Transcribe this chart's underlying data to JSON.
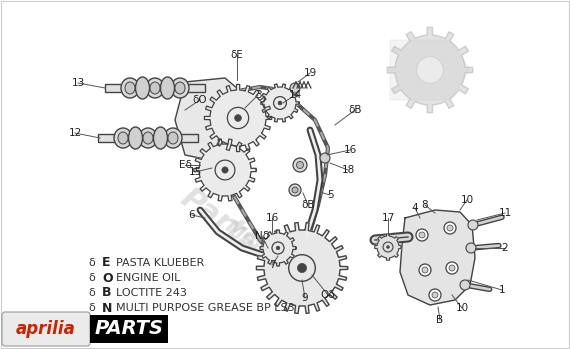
{
  "background_color": "#ffffff",
  "border_color": "#cccccc",
  "legend_items": [
    {
      "symbol": "δ E",
      "letter": "E",
      "text": "PASTA KLUEBER"
    },
    {
      "symbol": "δ O",
      "letter": "O",
      "text": "ENGINE OIL"
    },
    {
      "symbol": "δ B",
      "letter": "B",
      "text": "LOCTITE 243"
    },
    {
      "symbol": "δ N",
      "letter": "N",
      "text": "MULTI PURPOSE GREASE BP LS3"
    }
  ],
  "aprilia_text": "aprilia",
  "parts_text": "PARTS",
  "parts_bg": "#000000",
  "parts_color": "#ffffff",
  "aprilia_color": "#cc2200",
  "diagram_color": "#444444",
  "label_color": "#222222",
  "fig_width": 5.7,
  "fig_height": 3.49,
  "dpi": 100,
  "watermark_color": "#c8c8c8",
  "watermark_alpha": 0.55
}
